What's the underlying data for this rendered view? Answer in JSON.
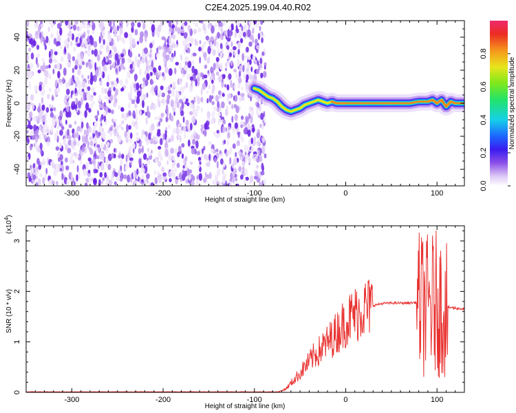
{
  "title": "C2E4.2025.199.04.40.R02",
  "chart_data": [
    {
      "type": "heatmap",
      "xlabel": "Height of straight line (km)",
      "ylabel": "Frequency (Hz)",
      "xlim": [
        -350,
        130
      ],
      "ylim": [
        -50,
        50
      ],
      "x_ticks": [
        -300,
        -200,
        -100,
        0,
        100
      ],
      "x_tick_labels": [
        "-300",
        "-200",
        "-100",
        "0",
        "100"
      ],
      "y_ticks": [
        -40,
        -20,
        0,
        20,
        40
      ],
      "y_tick_labels": [
        "-40",
        "-20",
        "0",
        "20",
        "40"
      ],
      "noise_region_x": [
        -350,
        -88
      ],
      "signal_track": {
        "x": [
          -100,
          -95,
          -90,
          -85,
          -80,
          -75,
          -70,
          -65,
          -60,
          -55,
          -50,
          -45,
          -40,
          -35,
          -30,
          -25,
          -20,
          -15,
          -10,
          -5,
          0,
          10,
          20,
          30,
          40,
          50,
          60,
          70,
          80,
          90,
          95,
          100,
          105,
          110,
          115,
          120,
          130
        ],
        "y": [
          9,
          8,
          6,
          4,
          3,
          1,
          -2,
          -4,
          -5,
          -4,
          -3,
          -1,
          0,
          1,
          2,
          1,
          0,
          1,
          0,
          0,
          0,
          0,
          0,
          0,
          0,
          0,
          0,
          0,
          1,
          1,
          2,
          0,
          2,
          -2,
          1,
          0,
          0
        ]
      },
      "colorbar": {
        "label": "Normalized spectral amplitude",
        "range": [
          0,
          1
        ],
        "ticks": [
          0.0,
          0.2,
          0.4,
          0.6,
          0.8
        ],
        "tick_labels": [
          "0.0",
          "0.2",
          "0.4",
          "0.6",
          "0.8"
        ]
      }
    },
    {
      "type": "line",
      "xlabel": "Height of straight line (km)",
      "ylabel": "SNR (10 * v/v)",
      "y_multiplier": "(x10",
      "y_multiplier_exp": "4",
      "y_multiplier_close": ")",
      "xlim": [
        -350,
        130
      ],
      "ylim": [
        0,
        3.3
      ],
      "x_ticks": [
        -300,
        -200,
        -100,
        0,
        100
      ],
      "x_tick_labels": [
        "-300",
        "-200",
        "-100",
        "0",
        "100"
      ],
      "y_ticks": [
        0,
        1,
        2,
        3
      ],
      "y_tick_labels": [
        "0",
        "1",
        "2",
        "3"
      ],
      "series": [
        {
          "color": "#e8312f",
          "x": [
            -350,
            -100,
            -75,
            -70,
            -65,
            -60,
            -55,
            -50,
            -45,
            -40,
            -35,
            -30,
            -25,
            -20,
            -15,
            -10,
            -5,
            0,
            10,
            20,
            30,
            40,
            50,
            60,
            70,
            76,
            80,
            85,
            90,
            95,
            100,
            103,
            106,
            108,
            110,
            115,
            120,
            130
          ],
          "y": [
            0.01,
            0.01,
            0.01,
            0.03,
            0.08,
            0.18,
            0.28,
            0.38,
            0.5,
            0.6,
            0.72,
            0.8,
            0.9,
            0.98,
            1.08,
            1.18,
            1.3,
            1.4,
            1.55,
            1.66,
            1.72,
            1.76,
            1.77,
            1.77,
            1.77,
            1.78,
            1.77,
            1.72,
            1.7,
            1.74,
            1.78,
            1.72,
            1.72,
            1.7,
            1.68,
            1.68,
            1.67,
            1.65
          ]
        }
      ]
    }
  ]
}
